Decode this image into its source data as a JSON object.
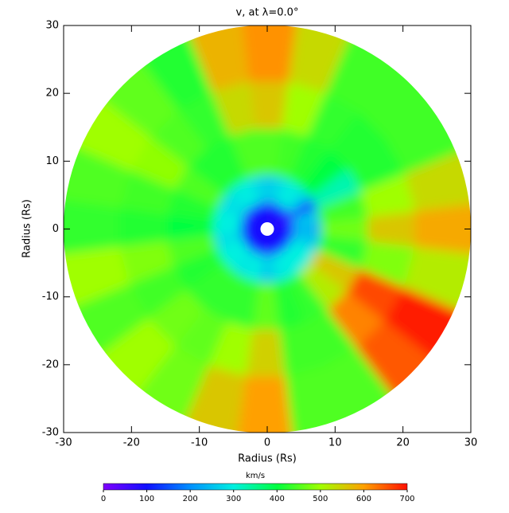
{
  "chart_data": {
    "type": "polar_heatmap",
    "title": "v, at λ=0.0°",
    "xlabel": "Radius (Rs)",
    "ylabel": "Radius (Rs)",
    "xlim": [
      -30,
      30
    ],
    "ylim": [
      -30,
      30
    ],
    "xticks": [
      -30,
      -20,
      -10,
      0,
      10,
      20,
      30
    ],
    "yticks": [
      -30,
      -20,
      -10,
      0,
      10,
      20,
      30
    ],
    "theta": [
      0,
      15,
      30,
      45,
      60,
      75,
      90,
      105,
      120,
      135,
      150,
      165,
      180,
      195,
      210,
      225,
      240,
      255,
      270,
      285,
      300,
      315,
      330,
      345
    ],
    "r_edges": [
      1,
      4,
      8,
      15,
      22,
      30
    ],
    "values": [
      [
        90,
        230,
        470,
        560,
        590
      ],
      [
        100,
        260,
        440,
        500,
        540
      ],
      [
        60,
        150,
        330,
        420,
        440
      ],
      [
        100,
        280,
        400,
        420,
        440
      ],
      [
        100,
        300,
        420,
        430,
        440
      ],
      [
        90,
        280,
        440,
        500,
        540
      ],
      [
        80,
        260,
        450,
        560,
        610
      ],
      [
        100,
        280,
        450,
        540,
        580
      ],
      [
        100,
        300,
        420,
        430,
        420
      ],
      [
        90,
        290,
        420,
        450,
        460
      ],
      [
        80,
        280,
        450,
        490,
        500
      ],
      [
        100,
        300,
        420,
        440,
        450
      ],
      [
        110,
        300,
        400,
        420,
        430
      ],
      [
        90,
        280,
        450,
        480,
        500
      ],
      [
        100,
        300,
        420,
        440,
        450
      ],
      [
        100,
        300,
        430,
        470,
        500
      ],
      [
        90,
        290,
        430,
        460,
        470
      ],
      [
        100,
        300,
        430,
        500,
        560
      ],
      [
        80,
        260,
        460,
        550,
        600
      ],
      [
        100,
        290,
        420,
        440,
        450
      ],
      [
        90,
        300,
        430,
        440,
        450
      ],
      [
        100,
        300,
        520,
        620,
        650
      ],
      [
        100,
        300,
        560,
        660,
        690
      ],
      [
        90,
        260,
        430,
        480,
        520
      ]
    ],
    "colormap": [
      "#8000ff",
      "#1010ff",
      "#0090ff",
      "#00f0e0",
      "#00ff40",
      "#a0ff00",
      "#ffa000",
      "#ff1000"
    ],
    "clim": [
      0,
      700
    ],
    "cticks": [
      0,
      100,
      200,
      300,
      400,
      500,
      600,
      700
    ],
    "colorbar_label": "km/s"
  }
}
